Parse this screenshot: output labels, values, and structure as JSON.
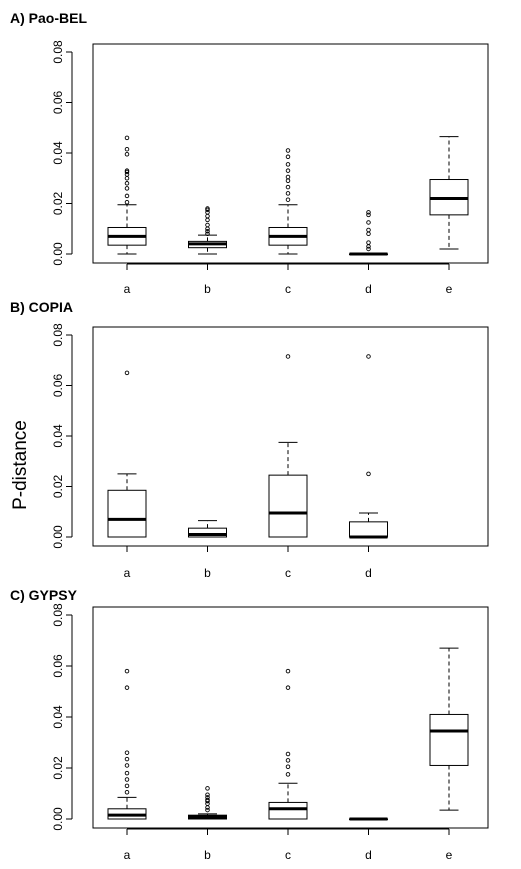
{
  "figure": {
    "ylabel": "P-distance"
  },
  "chart_data": [
    {
      "type": "boxplot",
      "title": "A) Pao-BEL",
      "ylim": [
        0,
        0.08
      ],
      "yticks": [
        "0.00",
        "0.02",
        "0.04",
        "0.06",
        "0.08"
      ],
      "categories": [
        "a",
        "b",
        "c",
        "d",
        "e"
      ],
      "boxes": [
        {
          "min": 0.0,
          "q1": 0.0035,
          "median": 0.007,
          "q3": 0.0105,
          "max": 0.0195,
          "outliers": [
            0.0205,
            0.023,
            0.026,
            0.028,
            0.03,
            0.0315,
            0.0325,
            0.033,
            0.0395,
            0.0415,
            0.046
          ]
        },
        {
          "min": 0.0,
          "q1": 0.0025,
          "median": 0.004,
          "q3": 0.005,
          "max": 0.0075,
          "outliers": [
            0.008,
            0.009,
            0.01,
            0.0115,
            0.0135,
            0.015,
            0.0165,
            0.0175,
            0.018
          ]
        },
        {
          "min": 0.0,
          "q1": 0.0035,
          "median": 0.007,
          "q3": 0.0105,
          "max": 0.0195,
          "outliers": [
            0.0215,
            0.024,
            0.0265,
            0.029,
            0.0305,
            0.033,
            0.0355,
            0.0385,
            0.041
          ]
        },
        {
          "min": 0.0,
          "q1": 0.0,
          "median": 0.0,
          "q3": 0.0,
          "max": 0.0,
          "outliers": [
            0.002,
            0.003,
            0.0045,
            0.008,
            0.0095,
            0.0125,
            0.0155,
            0.0165
          ]
        },
        {
          "min": 0.002,
          "q1": 0.0155,
          "median": 0.022,
          "q3": 0.0295,
          "max": 0.0465,
          "outliers": []
        }
      ]
    },
    {
      "type": "boxplot",
      "title": "B) COPIA",
      "ylim": [
        0,
        0.08
      ],
      "yticks": [
        "0.00",
        "0.02",
        "0.04",
        "0.06",
        "0.08"
      ],
      "categories": [
        "a",
        "b",
        "c",
        "d"
      ],
      "boxes": [
        {
          "min": 0.0,
          "q1": 0.0,
          "median": 0.007,
          "q3": 0.0185,
          "max": 0.025,
          "outliers": [
            0.065
          ]
        },
        {
          "min": 0.0,
          "q1": 0.0,
          "median": 0.001,
          "q3": 0.0035,
          "max": 0.0065,
          "outliers": []
        },
        {
          "min": 0.0,
          "q1": 0.0,
          "median": 0.0095,
          "q3": 0.0245,
          "max": 0.0375,
          "outliers": [
            0.0715
          ]
        },
        {
          "min": 0.0,
          "q1": 0.0,
          "median": 0.0,
          "q3": 0.006,
          "max": 0.0095,
          "outliers": [
            0.025,
            0.0715
          ]
        }
      ]
    },
    {
      "type": "boxplot",
      "title": "C) GYPSY",
      "ylim": [
        0,
        0.08
      ],
      "yticks": [
        "0.00",
        "0.02",
        "0.04",
        "0.06",
        "0.08"
      ],
      "categories": [
        "a",
        "b",
        "c",
        "d",
        "e"
      ],
      "boxes": [
        {
          "min": 0.0,
          "q1": 0.0,
          "median": 0.0015,
          "q3": 0.004,
          "max": 0.0085,
          "outliers": [
            0.0105,
            0.013,
            0.0155,
            0.018,
            0.021,
            0.0235,
            0.026,
            0.0515,
            0.058
          ]
        },
        {
          "min": 0.0,
          "q1": 0.0,
          "median": 0.0008,
          "q3": 0.0015,
          "max": 0.002,
          "outliers": [
            0.0035,
            0.0045,
            0.006,
            0.007,
            0.0075,
            0.0085,
            0.0095,
            0.012
          ]
        },
        {
          "min": 0.0,
          "q1": 0.0,
          "median": 0.004,
          "q3": 0.0065,
          "max": 0.014,
          "outliers": [
            0.0175,
            0.0205,
            0.023,
            0.0255,
            0.0515,
            0.058
          ]
        },
        {
          "min": 0.0,
          "q1": 0.0,
          "median": 0.0,
          "q3": 0.0,
          "max": 0.0,
          "outliers": []
        },
        {
          "min": 0.0035,
          "q1": 0.021,
          "median": 0.0345,
          "q3": 0.041,
          "max": 0.067,
          "outliers": []
        }
      ]
    }
  ]
}
